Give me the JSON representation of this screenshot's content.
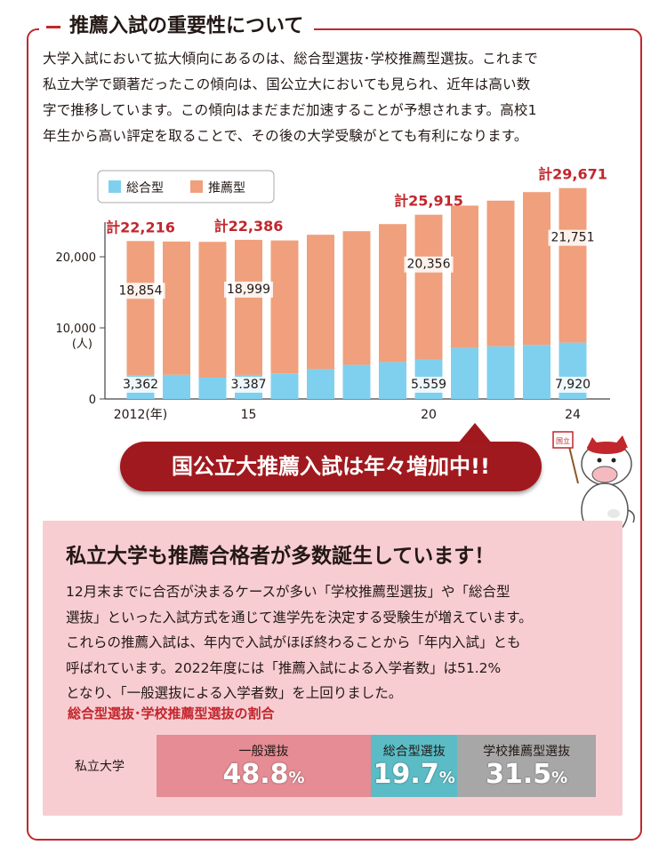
{
  "section_title": "推薦入試の重要性について",
  "intro_lines": [
    "大学入試において拡大傾向にあるのは、総合型選抜･学校推薦型選抜。これまで",
    "私立大学で顕著だったこの傾向は、国公立大においても見られ、近年は高い数",
    "字で推移しています。この傾向はまだまだ加速することが予想されます。高校1",
    "年生から高い評定を取ることで、その後の大学受験がとても有利になります。"
  ],
  "colors": {
    "accent": "#c1272d",
    "series_sogo": "#7fd0ee",
    "series_suisen": "#f0a07c",
    "callout": "#a0191e",
    "pink_bg": "#f7cdd2",
    "bar_ippan": "#e58c94",
    "bar_sogo": "#5bbcc6",
    "bar_gakko": "#a7a7a7"
  },
  "chart_data": {
    "type": "bar",
    "stacked": true,
    "categories": [
      "2012",
      "2013",
      "2014",
      "2015",
      "2016",
      "2017",
      "2018",
      "2019",
      "2020",
      "2021",
      "2022",
      "2023",
      "2024"
    ],
    "series": [
      {
        "name": "総合型",
        "values": [
          3362,
          3400,
          3000,
          3387,
          3600,
          4200,
          4800,
          5200,
          5559,
          7200,
          7400,
          7600,
          7920
        ]
      },
      {
        "name": "推薦型",
        "values": [
          18854,
          18750,
          19100,
          18999,
          18700,
          18900,
          18800,
          19400,
          20356,
          20000,
          20500,
          21500,
          21751
        ]
      }
    ],
    "ylim": [
      0,
      30000
    ],
    "yticks": [
      "0",
      "10,000",
      "20,000"
    ],
    "ylabel": "(人)",
    "xticks": [
      {
        "index": 0,
        "label": "2012(年)"
      },
      {
        "index": 3,
        "label": "15"
      },
      {
        "index": 8,
        "label": "20"
      },
      {
        "index": 12,
        "label": "24"
      }
    ],
    "totals": [
      {
        "index": 0,
        "label": "計22,216"
      },
      {
        "index": 3,
        "label": "計22,386"
      },
      {
        "index": 8,
        "label": "計25,915"
      },
      {
        "index": 12,
        "label": "計29,671"
      }
    ],
    "value_labels": [
      {
        "index": 0,
        "series": 0,
        "label": "3,362"
      },
      {
        "index": 0,
        "series": 1,
        "label": "18,854"
      },
      {
        "index": 3,
        "series": 0,
        "label": "3.387"
      },
      {
        "index": 3,
        "series": 1,
        "label": "18,999"
      },
      {
        "index": 8,
        "series": 0,
        "label": "5.559"
      },
      {
        "index": 8,
        "series": 1,
        "label": "20,356"
      },
      {
        "index": 12,
        "series": 0,
        "label": "7,920"
      },
      {
        "index": 12,
        "series": 1,
        "label": "21,751"
      }
    ],
    "legend_position": "top-left",
    "grid": false
  },
  "callout_text": "国公立大推薦入試は年々増加中!!",
  "mascot_flag_text": "国立",
  "pink_title": "私立大学も推薦合格者が多数誕生しています！",
  "pink_lines": [
    "12月末までに合否が決まるケースが多い「学校推薦型選抜」や「総合型",
    "選抜」といった入試方式を通じて進学先を決定する受験生が増えています。",
    "これらの推薦入試は、年内で入試がほぼ終わることから「年内入試」とも",
    "呼ばれています。2022年度には「推薦入試による入学者数」は51.2%",
    "となり、「一般選抜による入学者数」を上回りました。"
  ],
  "ratio_title": "総合型選抜･学校推薦型選抜の割合",
  "ratio_row_label": "私立大学",
  "ratio": [
    {
      "label": "一般選抜",
      "value": "48.8",
      "unit": "%",
      "share": 48.8
    },
    {
      "label": "総合型選抜",
      "value": "19.7",
      "unit": "%",
      "share": 19.7
    },
    {
      "label": "学校推薦型選抜",
      "value": "31.5",
      "unit": "%",
      "share": 31.5
    }
  ]
}
